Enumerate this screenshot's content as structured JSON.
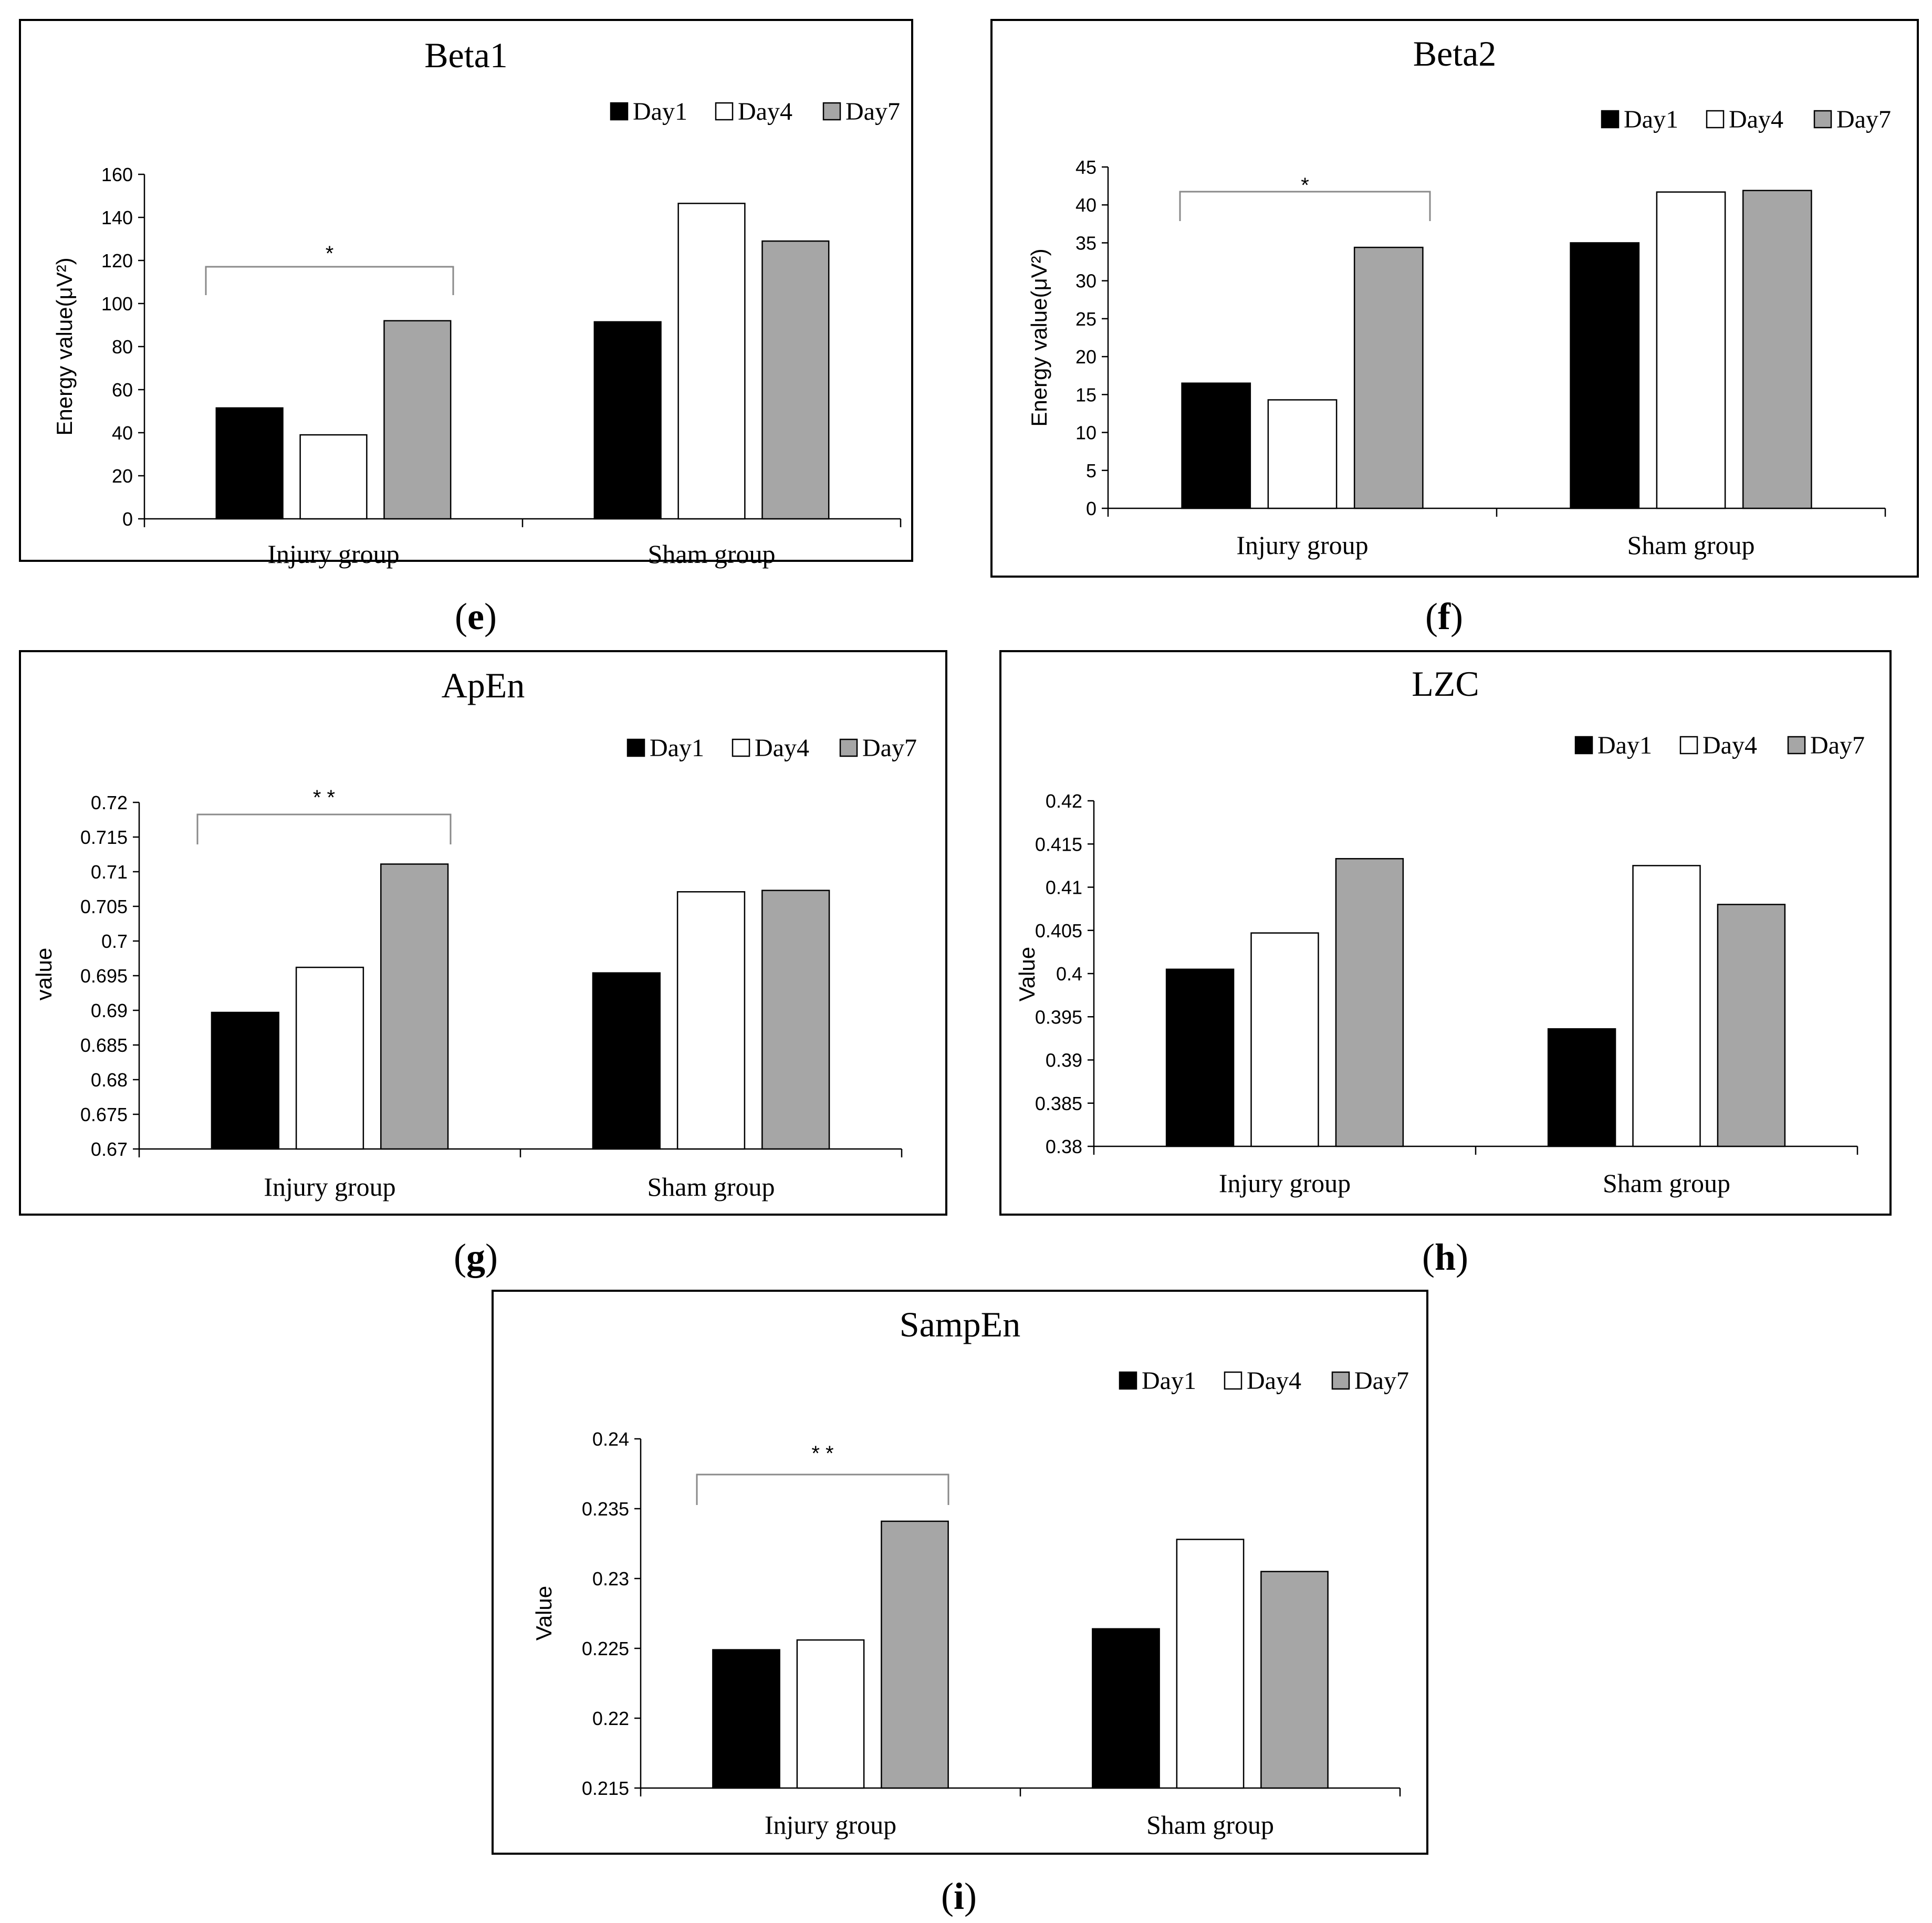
{
  "colors": {
    "Day1": "#000000",
    "Day4": "#ffffff",
    "Day7": "#a6a6a6",
    "bracket": "#8a8a8a"
  },
  "legend": [
    "Day1",
    "Day4",
    "Day7"
  ],
  "panel_labels": [
    "e",
    "f",
    "g",
    "h",
    "i"
  ],
  "chart_data": [
    {
      "type": "bar",
      "title": "Beta1",
      "panel": "e",
      "categories": [
        "Injury group",
        "Sham group"
      ],
      "series": [
        {
          "name": "Day1",
          "values": [
            51.5,
            91.5
          ]
        },
        {
          "name": "Day4",
          "values": [
            39,
            146.5
          ]
        },
        {
          "name": "Day7",
          "values": [
            92,
            129
          ]
        }
      ],
      "xlabel": "",
      "ylabel": "Energy value(μV²)",
      "ylim": [
        0,
        160
      ],
      "yticks": [
        "0",
        "20",
        "40",
        "60",
        "80",
        "100",
        "120",
        "140",
        "160"
      ],
      "significance": {
        "label": "*",
        "group": "Injury group"
      }
    },
    {
      "type": "bar",
      "title": "Beta2",
      "panel": "f",
      "categories": [
        "Injury group",
        "Sham group"
      ],
      "series": [
        {
          "name": "Day1",
          "values": [
            16.5,
            35
          ]
        },
        {
          "name": "Day4",
          "values": [
            14.3,
            41.7
          ]
        },
        {
          "name": "Day7",
          "values": [
            34.4,
            41.9
          ]
        }
      ],
      "xlabel": "",
      "ylabel": "Energy value(μV²)",
      "ylim": [
        0,
        45
      ],
      "yticks": [
        "0",
        "5",
        "10",
        "15",
        "20",
        "25",
        "30",
        "35",
        "40",
        "45"
      ],
      "significance": {
        "label": "*",
        "group": "Injury group"
      }
    },
    {
      "type": "bar",
      "title": "ApEn",
      "panel": "g",
      "categories": [
        "Injury group",
        "Sham group"
      ],
      "series": [
        {
          "name": "Day1",
          "values": [
            0.6897,
            0.6954
          ]
        },
        {
          "name": "Day4",
          "values": [
            0.6962,
            0.7071
          ]
        },
        {
          "name": "Day7",
          "values": [
            0.7111,
            0.7073
          ]
        }
      ],
      "xlabel": "",
      "ylabel": "value",
      "ylim": [
        0.67,
        0.72
      ],
      "yticks": [
        "0.67",
        "0.675",
        "0.68",
        "0.685",
        "0.69",
        "0.695",
        "0.7",
        "0.705",
        "0.71",
        "0.715",
        "0.72"
      ],
      "significance": {
        "label": "* *",
        "group": "Injury group"
      }
    },
    {
      "type": "bar",
      "title": "LZC",
      "panel": "h",
      "categories": [
        "Injury group",
        "Sham group"
      ],
      "series": [
        {
          "name": "Day1",
          "values": [
            0.4005,
            0.3936
          ]
        },
        {
          "name": "Day4",
          "values": [
            0.4047,
            0.4125
          ]
        },
        {
          "name": "Day7",
          "values": [
            0.4133,
            0.408
          ]
        }
      ],
      "xlabel": "",
      "ylabel": "Value",
      "ylim": [
        0.38,
        0.42
      ],
      "yticks": [
        "0.38",
        "0.385",
        "0.39",
        "0.395",
        "0.4",
        "0.405",
        "0.41",
        "0.415",
        "0.42"
      ],
      "significance": null
    },
    {
      "type": "bar",
      "title": "SampEn",
      "panel": "i",
      "categories": [
        "Injury group",
        "Sham group"
      ],
      "series": [
        {
          "name": "Day1",
          "values": [
            0.2249,
            0.2264
          ]
        },
        {
          "name": "Day4",
          "values": [
            0.2256,
            0.2328
          ]
        },
        {
          "name": "Day7",
          "values": [
            0.2341,
            0.2305
          ]
        }
      ],
      "xlabel": "",
      "ylabel": "Value",
      "ylim": [
        0.215,
        0.24
      ],
      "yticks": [
        "0.215",
        "0.22",
        "0.225",
        "0.23",
        "0.235",
        "0.24"
      ],
      "significance": {
        "label": "* *",
        "group": "Injury group"
      }
    }
  ]
}
